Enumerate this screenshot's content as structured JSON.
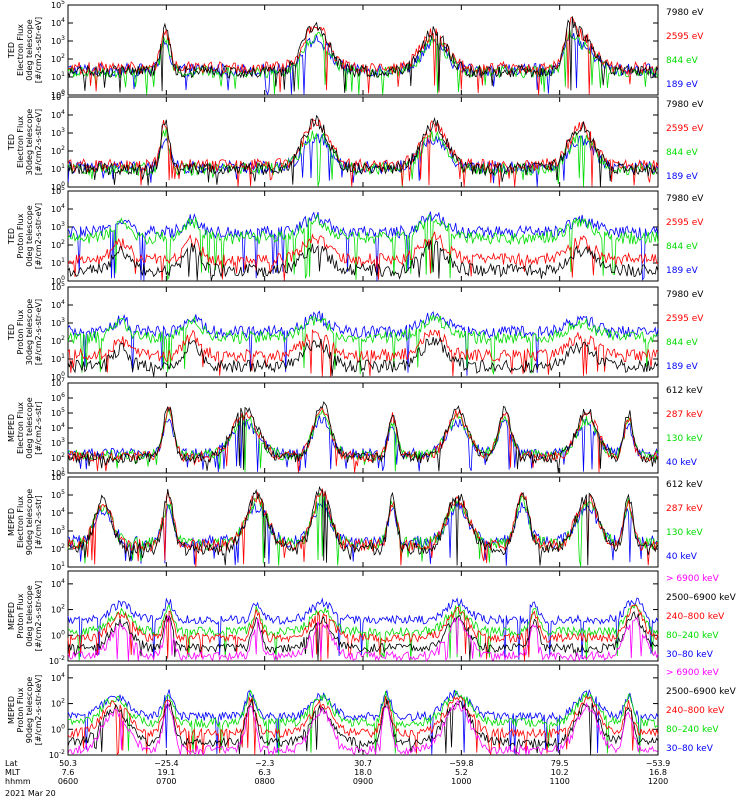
{
  "chart_data": {
    "type": "line",
    "date": "2021 Mar 20",
    "footer_labels": [
      "Lat",
      "MLT",
      "hhmm"
    ],
    "lat_ticks": [
      "50.3",
      "−25.4",
      "−2.3",
      "30.7",
      "−59.8",
      "79.5",
      "−53.9"
    ],
    "mlt_ticks": [
      "7.6",
      "19.1",
      "6.3",
      "18.0",
      "5.2",
      "10.2",
      "16.8"
    ],
    "hhmm_ticks": [
      "0600",
      "0700",
      "0800",
      "0900",
      "1000",
      "1100",
      "1200"
    ],
    "x_range": [
      "0600",
      "1200"
    ],
    "panels": [
      {
        "ylabel": [
          "TED",
          "Electron Flux",
          "0deg telescope",
          "[#/cm2-s-str-eV]"
        ],
        "ylim_exp": [
          0,
          5
        ],
        "yticks": [
          "10^0",
          "10^1",
          "10^2",
          "10^3",
          "10^4",
          "10^5"
        ],
        "legend": [
          {
            "label": "7980 eV",
            "color": "#000000"
          },
          {
            "label": "2595 eV",
            "color": "#ff0000"
          },
          {
            "label": "844 eV",
            "color": "#00dd00"
          },
          {
            "label": "189 eV",
            "color": "#0000ff"
          }
        ],
        "series_levels": [
          1.3,
          1.5,
          1.3,
          1.4
        ],
        "peaks": [
          [
            0.165,
            0.01,
            2.5
          ],
          [
            0.42,
            0.03,
            2.6
          ],
          [
            0.62,
            0.03,
            2.2
          ],
          [
            0.87,
            0.03,
            2.1
          ],
          [
            0.85,
            0.01,
            1.5
          ]
        ]
      },
      {
        "ylabel": [
          "TED",
          "Electron Flux",
          "30deg telescope",
          "[#/cm2-s-str-eV]"
        ],
        "ylim_exp": [
          0,
          5
        ],
        "yticks": [
          "10^0",
          "10^1",
          "10^2",
          "10^3",
          "10^4",
          "10^5"
        ],
        "legend": [
          {
            "label": "7980 eV",
            "color": "#000000"
          },
          {
            "label": "2595 eV",
            "color": "#ff0000"
          },
          {
            "label": "844 eV",
            "color": "#00dd00"
          },
          {
            "label": "189 eV",
            "color": "#0000ff"
          }
        ],
        "series_levels": [
          1.0,
          1.2,
          1.0,
          1.1
        ],
        "peaks": [
          [
            0.165,
            0.01,
            2.8
          ],
          [
            0.42,
            0.03,
            2.7
          ],
          [
            0.62,
            0.03,
            2.5
          ],
          [
            0.87,
            0.03,
            2.4
          ]
        ]
      },
      {
        "ylabel": [
          "TED",
          "Proton Flux",
          "0deg telescope",
          "[#/cm2-s-str-eV]"
        ],
        "ylim_exp": [
          0,
          5
        ],
        "yticks": [
          "10^0",
          "10^1",
          "10^2",
          "10^3",
          "10^4",
          "10^5"
        ],
        "legend": [
          {
            "label": "7980 eV",
            "color": "#000000"
          },
          {
            "label": "2595 eV",
            "color": "#ff0000"
          },
          {
            "label": "844 eV",
            "color": "#00dd00"
          },
          {
            "label": "189 eV",
            "color": "#0000ff"
          }
        ],
        "series_levels": [
          0.6,
          1.2,
          2.4,
          2.7
        ],
        "peaks": [
          [
            0.09,
            0.02,
            1.0
          ],
          [
            0.21,
            0.02,
            1.2
          ],
          [
            0.42,
            0.03,
            1.3
          ],
          [
            0.62,
            0.03,
            1.4
          ],
          [
            0.87,
            0.03,
            1.1
          ]
        ]
      },
      {
        "ylabel": [
          "TED",
          "Proton Flux",
          "30deg telescope",
          "[#/cm2-s-str-eV]"
        ],
        "ylim_exp": [
          0,
          5
        ],
        "yticks": [
          "10^0",
          "10^1",
          "10^2",
          "10^3",
          "10^4",
          "10^5"
        ],
        "legend": [
          {
            "label": "7980 eV",
            "color": "#000000"
          },
          {
            "label": "2595 eV",
            "color": "#ff0000"
          },
          {
            "label": "844 eV",
            "color": "#00dd00"
          },
          {
            "label": "189 eV",
            "color": "#0000ff"
          }
        ],
        "series_levels": [
          0.6,
          1.2,
          2.2,
          2.5
        ],
        "peaks": [
          [
            0.09,
            0.02,
            1.0
          ],
          [
            0.21,
            0.02,
            1.2
          ],
          [
            0.42,
            0.03,
            1.3
          ],
          [
            0.62,
            0.03,
            1.4
          ],
          [
            0.87,
            0.03,
            1.1
          ]
        ]
      },
      {
        "ylabel": [
          "MEPED",
          "Electron Flux",
          "0deg telescope",
          "[#/cm2-s-str]"
        ],
        "ylim_exp": [
          1,
          7
        ],
        "yticks": [
          "10^1",
          "10^2",
          "10^3",
          "10^4",
          "10^5",
          "10^6",
          "10^7"
        ],
        "legend": [
          {
            "label": "612 keV",
            "color": "#000000"
          },
          {
            "label": "287 keV",
            "color": "#ff0000"
          },
          {
            "label": "130 keV",
            "color": "#00dd00"
          },
          {
            "label": "40 keV",
            "color": "#0000ff"
          }
        ],
        "series_levels": [
          2.0,
          2.1,
          2.2,
          2.3
        ],
        "peaks": [
          [
            0.17,
            0.012,
            3.5
          ],
          [
            0.3,
            0.03,
            3.2
          ],
          [
            0.43,
            0.02,
            3.7
          ],
          [
            0.55,
            0.01,
            3.0
          ],
          [
            0.66,
            0.025,
            3.2
          ],
          [
            0.74,
            0.015,
            3.3
          ],
          [
            0.88,
            0.025,
            3.1
          ],
          [
            0.95,
            0.01,
            3.0
          ]
        ]
      },
      {
        "ylabel": [
          "MEPED",
          "Electron Flux",
          "90deg telescope",
          "[#/cm2-s-str]"
        ],
        "ylim_exp": [
          1,
          6
        ],
        "yticks": [
          "10^1",
          "10^2",
          "10^3",
          "10^4",
          "10^5",
          "10^6"
        ],
        "legend": [
          {
            "label": "612 keV",
            "color": "#000000"
          },
          {
            "label": "287 keV",
            "color": "#ff0000"
          },
          {
            "label": "130 keV",
            "color": "#00dd00"
          },
          {
            "label": "40 keV",
            "color": "#0000ff"
          }
        ],
        "series_levels": [
          2.0,
          2.2,
          2.3,
          2.4
        ],
        "peaks": [
          [
            0.06,
            0.02,
            2.8
          ],
          [
            0.17,
            0.012,
            3.0
          ],
          [
            0.32,
            0.025,
            3.0
          ],
          [
            0.43,
            0.02,
            3.4
          ],
          [
            0.55,
            0.01,
            2.8
          ],
          [
            0.66,
            0.025,
            3.0
          ],
          [
            0.77,
            0.015,
            3.2
          ],
          [
            0.88,
            0.025,
            3.0
          ],
          [
            0.95,
            0.01,
            2.9
          ]
        ]
      },
      {
        "ylabel": [
          "MEPED",
          "Proton Flux",
          "0deg telescope",
          "[#/cm2-s-str-keV]"
        ],
        "ylim_exp": [
          -2,
          5
        ],
        "yticks": [
          "10^-2",
          "10^0",
          "10^2",
          "10^4"
        ],
        "legend": [
          {
            "label": "> 6900 keV",
            "color": "#ff00ff"
          },
          {
            "label": "2500–6900 keV",
            "color": "#000000"
          },
          {
            "label": "240–800 keV",
            "color": "#ff0000"
          },
          {
            "label": "80–240 keV",
            "color": "#00dd00"
          },
          {
            "label": "30–80 keV",
            "color": "#0000ff"
          }
        ],
        "series_levels": [
          -1.6,
          -1.0,
          -0.2,
          0.3,
          1.2
        ],
        "peaks": [
          [
            0.09,
            0.025,
            2.3
          ],
          [
            0.17,
            0.01,
            2.8
          ],
          [
            0.32,
            0.01,
            2.6
          ],
          [
            0.43,
            0.025,
            2.5
          ],
          [
            0.66,
            0.025,
            2.7
          ],
          [
            0.79,
            0.01,
            2.5
          ],
          [
            0.96,
            0.02,
            3.0
          ]
        ]
      },
      {
        "ylabel": [
          "MEPED",
          "Proton Flux",
          "90deg telescope",
          "[#/cm2-s-str-keV]"
        ],
        "ylim_exp": [
          -2,
          5
        ],
        "yticks": [
          "10^-2",
          "10^0",
          "10^2",
          "10^4"
        ],
        "legend": [
          {
            "label": "> 6900 keV",
            "color": "#ff00ff"
          },
          {
            "label": "2500–6900 keV",
            "color": "#000000"
          },
          {
            "label": "240–800 keV",
            "color": "#ff0000"
          },
          {
            "label": "80–240 keV",
            "color": "#00dd00"
          },
          {
            "label": "30–80 keV",
            "color": "#0000ff"
          }
        ],
        "series_levels": [
          -1.6,
          -1.0,
          -0.3,
          0.5,
          1.0
        ],
        "peaks": [
          [
            0.08,
            0.03,
            3.0
          ],
          [
            0.17,
            0.012,
            3.5
          ],
          [
            0.31,
            0.012,
            3.5
          ],
          [
            0.43,
            0.025,
            3.0
          ],
          [
            0.54,
            0.01,
            3.5
          ],
          [
            0.66,
            0.03,
            3.5
          ],
          [
            0.88,
            0.025,
            3.4
          ],
          [
            0.95,
            0.01,
            3.0
          ]
        ]
      }
    ]
  }
}
